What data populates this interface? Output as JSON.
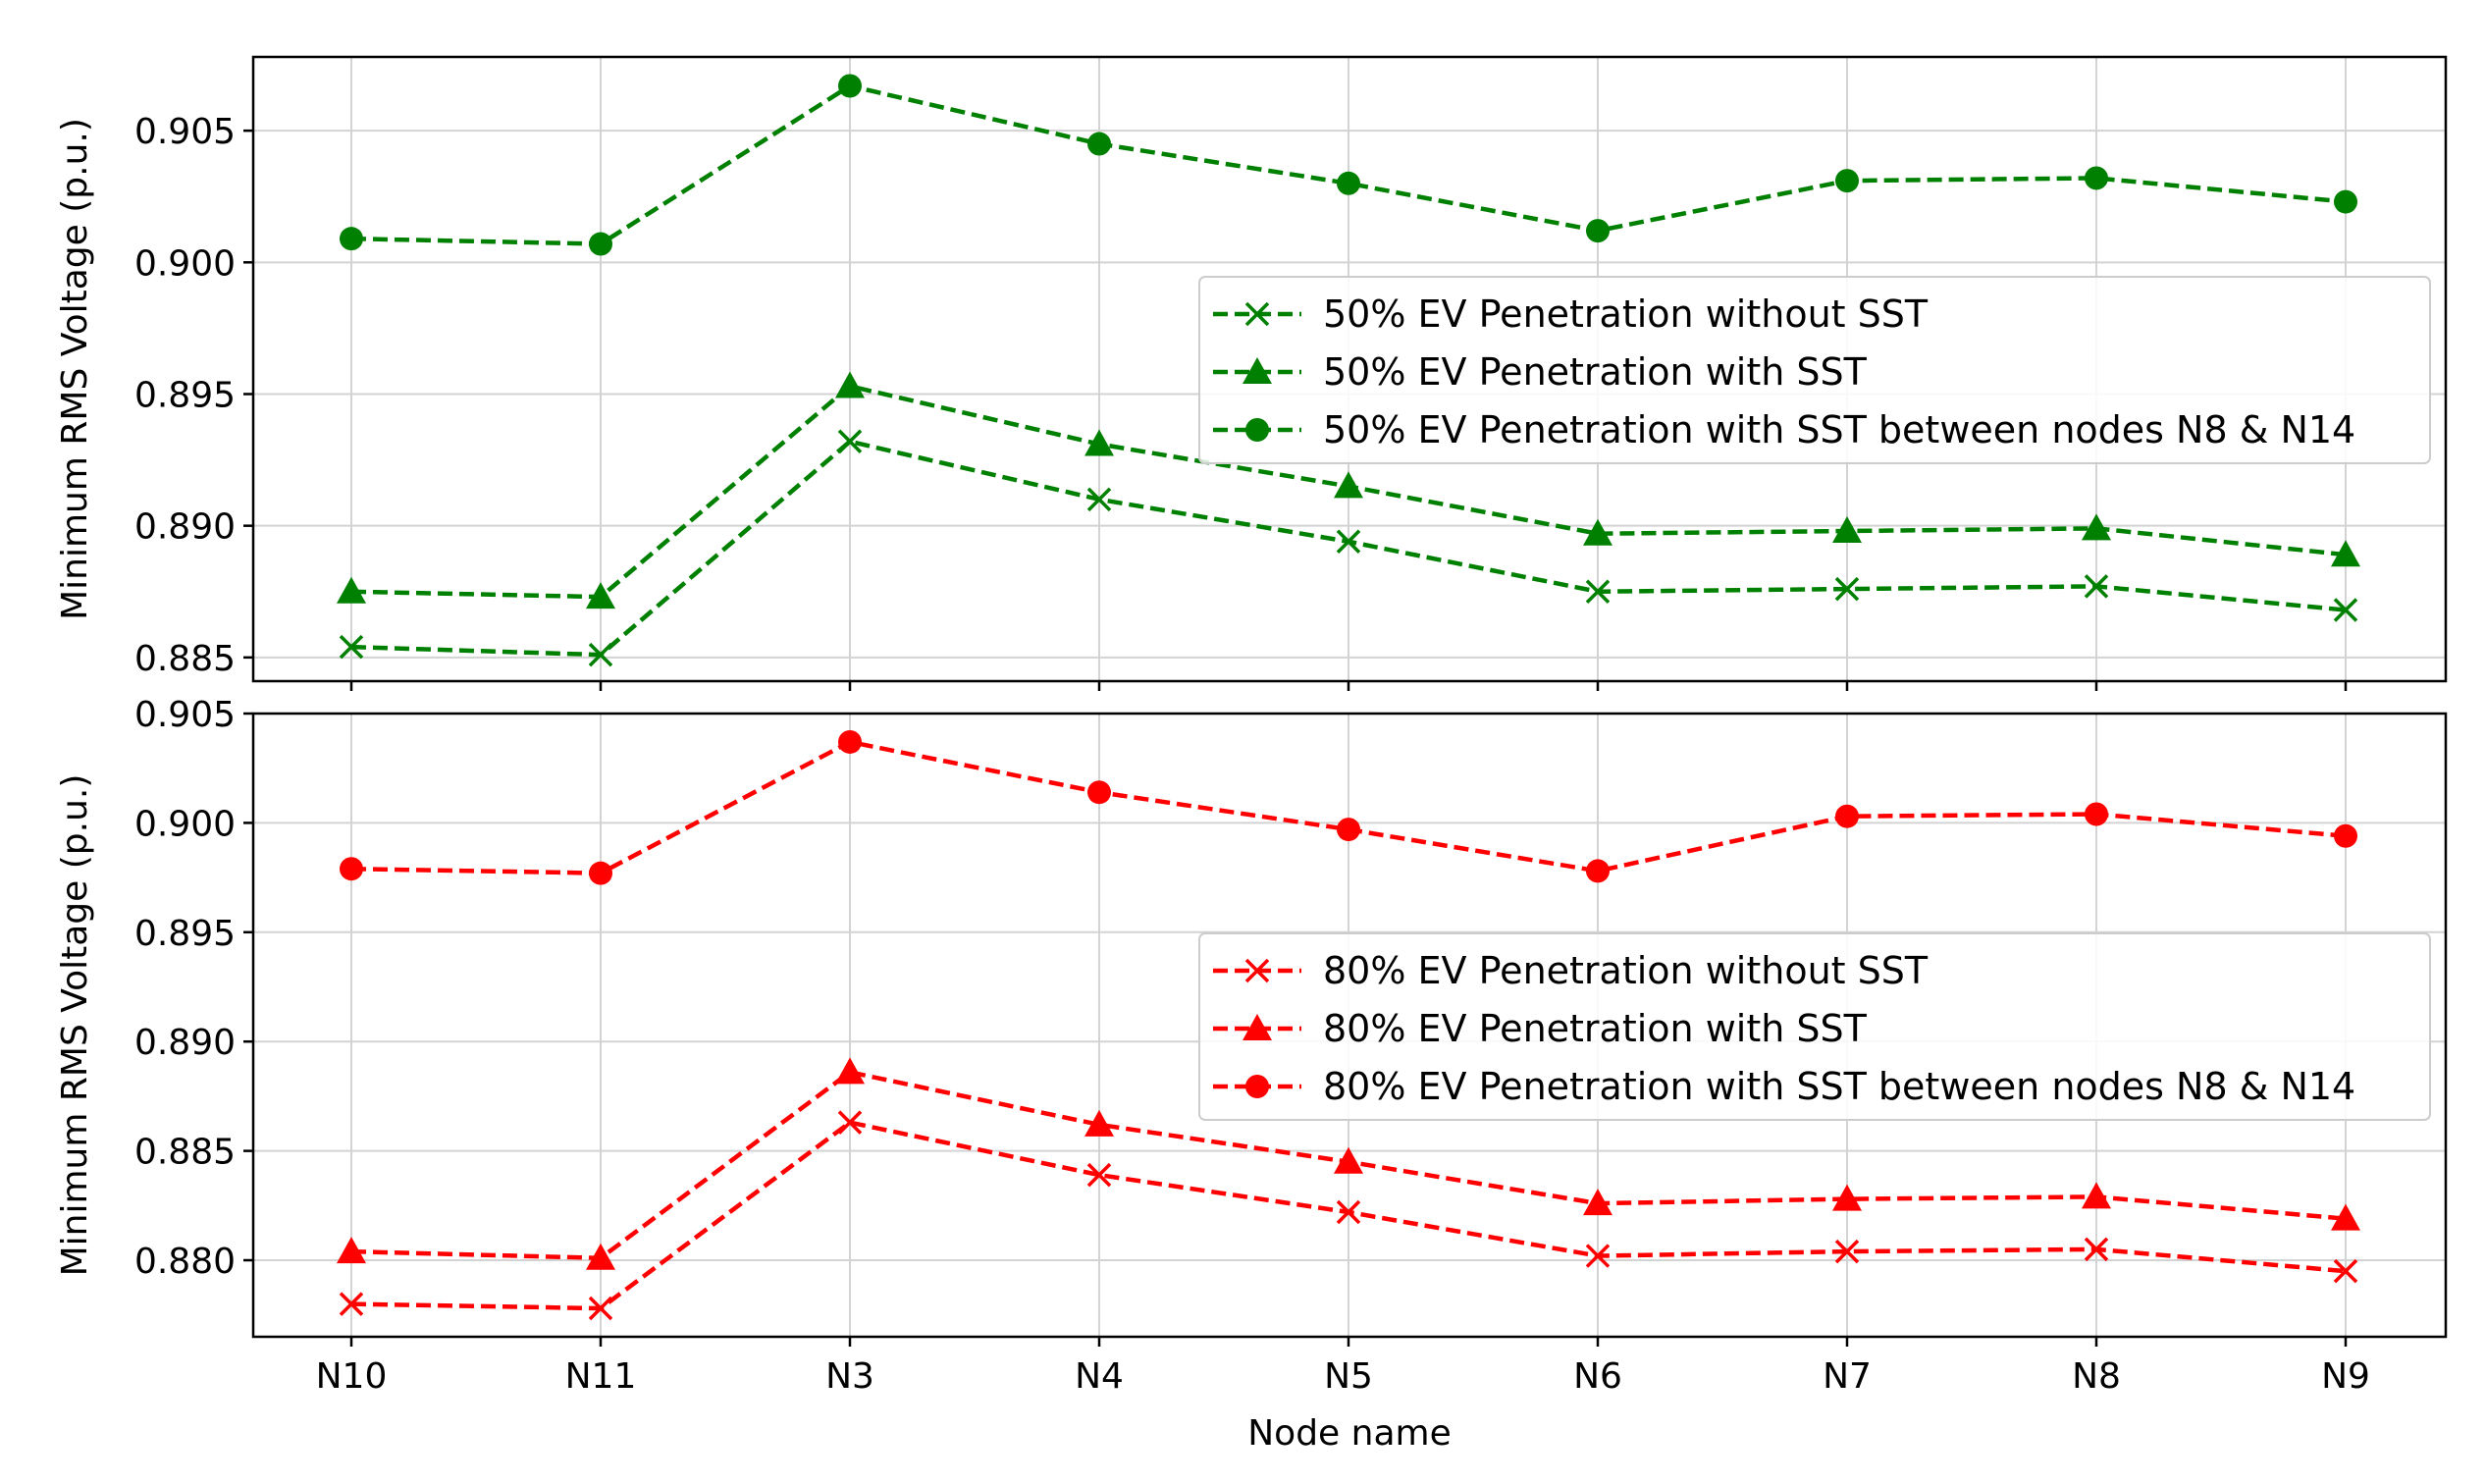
{
  "chart_data": [
    {
      "type": "line",
      "categories": [
        "N10",
        "N11",
        "N3",
        "N4",
        "N5",
        "N6",
        "N7",
        "N8",
        "N9"
      ],
      "ylabel": "Minimum RMS Voltage (p.u.)",
      "xlabel": "",
      "ylim": [
        0.8841,
        0.9078
      ],
      "yticks": [
        0.885,
        0.89,
        0.895,
        0.9,
        0.905
      ],
      "ytick_labels": [
        "0.885",
        "0.890",
        "0.895",
        "0.900",
        "0.905"
      ],
      "grid": true,
      "legend_position": "center-right",
      "color": "#008000",
      "series": [
        {
          "name": "50% EV Penetration without SST",
          "marker": "x",
          "values": [
            0.8854,
            0.8851,
            0.8932,
            0.891,
            0.8894,
            0.8875,
            0.8876,
            0.8877,
            0.8868
          ]
        },
        {
          "name": "50% EV Penetration with SST",
          "marker": "triangle",
          "values": [
            0.8875,
            0.8873,
            0.8953,
            0.8931,
            0.8915,
            0.8897,
            0.8898,
            0.8899,
            0.8889
          ]
        },
        {
          "name": "50% EV Penetration with SST between nodes N8 & N14",
          "marker": "circle",
          "values": [
            0.9009,
            0.9007,
            0.9067,
            0.9045,
            0.903,
            0.9012,
            0.9031,
            0.9032,
            0.9023
          ]
        }
      ]
    },
    {
      "type": "line",
      "categories": [
        "N10",
        "N11",
        "N3",
        "N4",
        "N5",
        "N6",
        "N7",
        "N8",
        "N9"
      ],
      "ylabel": "Minimum RMS Voltage (p.u.)",
      "xlabel": "Node name",
      "ylim": [
        0.8765,
        0.905
      ],
      "yticks": [
        0.88,
        0.885,
        0.89,
        0.895,
        0.9,
        0.905
      ],
      "ytick_labels": [
        "0.880",
        "0.885",
        "0.890",
        "0.895",
        "0.900",
        "0.905"
      ],
      "grid": true,
      "legend_position": "center-right",
      "color": "#ff0000",
      "series": [
        {
          "name": "80% EV Penetration without SST",
          "marker": "x",
          "values": [
            0.878,
            0.8778,
            0.8863,
            0.8839,
            0.8822,
            0.8802,
            0.8804,
            0.8805,
            0.8795
          ]
        },
        {
          "name": "80% EV Penetration with SST",
          "marker": "triangle",
          "values": [
            0.8804,
            0.8801,
            0.8886,
            0.8862,
            0.8845,
            0.8826,
            0.8828,
            0.8829,
            0.8819
          ]
        },
        {
          "name": "80% EV Penetration with SST between nodes N8 & N14",
          "marker": "circle",
          "values": [
            0.8979,
            0.8977,
            0.9037,
            0.9014,
            0.8997,
            0.8978,
            0.9003,
            0.9004,
            0.8994
          ]
        }
      ]
    }
  ]
}
